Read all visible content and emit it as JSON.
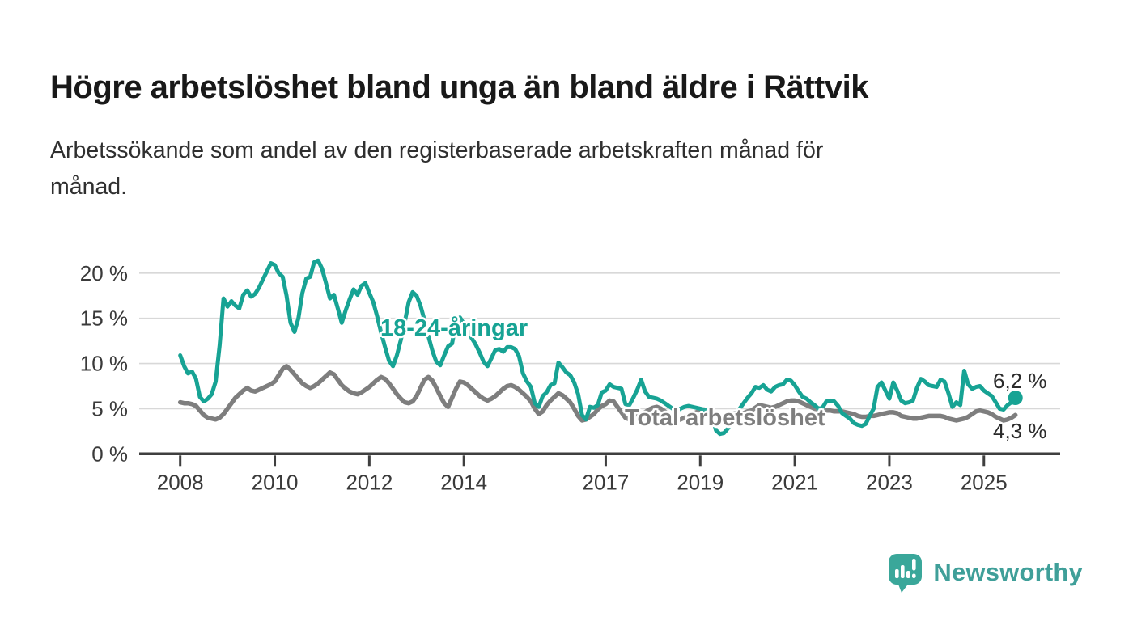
{
  "header": {
    "title": "Högre arbetslöshet bland unga än bland äldre i Rättvik",
    "subtitle_lines": [
      "Arbetssökande som andel av den registerbaserade arbetskraften månad för",
      "månad."
    ]
  },
  "footer": {
    "brand": "Newsworthy"
  },
  "colors": {
    "youth": "#17a394",
    "total": "#7e7e7e",
    "grid": "#d8d8d8",
    "axis": "#3f3f3f",
    "tick_text": "#3a3a3a",
    "title_text": "#191919",
    "logo_bubble": "#3aa79a",
    "logo_text": "#3f9f99",
    "background": "#ffffff"
  },
  "chart_data": {
    "type": "line",
    "frequency": "monthly",
    "start_month": "2008-01",
    "end_month": "2025-09",
    "unit": "%",
    "grid": "horizontal",
    "legend_position": "inline-annotations",
    "ylim": [
      0,
      22
    ],
    "y_ticks": [
      0,
      5,
      10,
      15,
      20
    ],
    "y_tick_labels": [
      "0 %",
      "5 %",
      "10 %",
      "15 %",
      "20 %"
    ],
    "x_tick_years": [
      2008,
      2010,
      2012,
      2014,
      2017,
      2019,
      2021,
      2023,
      2025
    ],
    "series": [
      {
        "name": "18-24-åringar",
        "color": "#17a394",
        "end_label": "6,2 %",
        "end_value": 6.2,
        "values": [
          10.9,
          9.7,
          8.9,
          9.1,
          8.3,
          6.3,
          5.8,
          6.1,
          6.6,
          8.0,
          12.0,
          17.2,
          16.3,
          16.9,
          16.4,
          16.1,
          17.6,
          18.1,
          17.4,
          17.7,
          18.4,
          19.3,
          20.2,
          21.1,
          20.9,
          20.0,
          19.6,
          17.5,
          14.5,
          13.5,
          15.0,
          17.8,
          19.4,
          19.6,
          21.2,
          21.4,
          20.5,
          18.9,
          17.2,
          17.6,
          16.1,
          14.5,
          15.9,
          17.1,
          18.2,
          17.6,
          18.6,
          18.9,
          17.8,
          16.8,
          15.2,
          13.4,
          11.8,
          10.3,
          9.7,
          10.9,
          12.6,
          14.6,
          16.8,
          17.9,
          17.5,
          16.4,
          14.8,
          13.0,
          11.4,
          10.2,
          9.8,
          10.9,
          11.9,
          12.2,
          14.6,
          15.1,
          14.4,
          13.6,
          12.8,
          12.1,
          11.2,
          10.2,
          9.7,
          10.6,
          11.5,
          11.6,
          11.3,
          11.8,
          11.8,
          11.6,
          10.8,
          8.9,
          8.0,
          7.4,
          5.6,
          5.2,
          6.4,
          6.8,
          7.6,
          7.8,
          10.1,
          9.6,
          9.0,
          8.7,
          7.9,
          6.6,
          4.3,
          3.8,
          5.2,
          5.1,
          5.4,
          6.8,
          7.0,
          7.7,
          7.4,
          7.3,
          7.2,
          5.5,
          5.4,
          6.2,
          7.1,
          8.2,
          6.9,
          6.3,
          6.2,
          6.1,
          5.9,
          5.6,
          5.3,
          5.0,
          4.8,
          5.0,
          5.2,
          5.3,
          5.2,
          5.1,
          5.0,
          4.9,
          4.7,
          4.2,
          2.6,
          2.2,
          2.3,
          2.8,
          3.6,
          4.4,
          5.0,
          5.6,
          6.2,
          6.7,
          7.4,
          7.3,
          7.6,
          7.1,
          6.9,
          7.4,
          7.6,
          7.7,
          8.2,
          8.1,
          7.6,
          6.9,
          6.3,
          6.1,
          5.7,
          5.4,
          5.0,
          5.1,
          5.8,
          5.9,
          5.8,
          5.3,
          4.5,
          4.2,
          3.9,
          3.4,
          3.2,
          3.1,
          3.3,
          4.2,
          5.0,
          7.4,
          7.9,
          7.0,
          6.1,
          7.9,
          7.0,
          5.9,
          5.6,
          5.7,
          5.9,
          7.3,
          8.3,
          8.0,
          7.6,
          7.5,
          7.4,
          8.2,
          8.0,
          6.7,
          5.2,
          5.7,
          5.4,
          9.2,
          7.7,
          7.2,
          7.4,
          7.5,
          7.0,
          6.7,
          6.4,
          5.7,
          5.0,
          4.9,
          5.4,
          5.7,
          6.2
        ]
      },
      {
        "name": "Total arbetslöshet",
        "color": "#7e7e7e",
        "end_label": "4,3 %",
        "end_value": 4.3,
        "values": [
          5.7,
          5.6,
          5.6,
          5.5,
          5.3,
          4.8,
          4.3,
          4.0,
          3.9,
          3.8,
          4.0,
          4.4,
          5.0,
          5.6,
          6.2,
          6.6,
          7.0,
          7.3,
          7.0,
          6.9,
          7.1,
          7.3,
          7.5,
          7.7,
          8.0,
          8.7,
          9.4,
          9.7,
          9.3,
          8.8,
          8.3,
          7.8,
          7.5,
          7.3,
          7.5,
          7.8,
          8.2,
          8.6,
          9.0,
          8.8,
          8.2,
          7.6,
          7.2,
          6.9,
          6.7,
          6.6,
          6.8,
          7.1,
          7.4,
          7.8,
          8.2,
          8.5,
          8.3,
          7.8,
          7.2,
          6.6,
          6.1,
          5.7,
          5.6,
          5.8,
          6.4,
          7.3,
          8.2,
          8.5,
          8.1,
          7.3,
          6.4,
          5.6,
          5.2,
          6.2,
          7.2,
          8.0,
          7.9,
          7.6,
          7.2,
          6.8,
          6.4,
          6.1,
          5.9,
          6.1,
          6.4,
          6.8,
          7.2,
          7.5,
          7.6,
          7.4,
          7.1,
          6.7,
          6.3,
          5.8,
          5.0,
          4.4,
          4.7,
          5.4,
          5.9,
          6.3,
          6.7,
          6.5,
          6.1,
          5.7,
          5.0,
          4.2,
          3.7,
          3.8,
          4.1,
          4.4,
          4.9,
          5.3,
          5.5,
          5.9,
          5.8,
          5.2,
          4.6,
          4.0,
          3.8,
          4.0,
          4.2,
          4.4,
          4.6,
          4.9,
          5.1,
          5.2,
          5.0,
          4.7,
          4.3,
          3.9,
          3.7,
          3.8,
          4.0,
          4.2,
          4.4,
          4.6,
          4.8,
          4.9,
          4.7,
          4.5,
          4.2,
          4.0,
          4.1,
          4.2,
          4.4,
          4.5,
          4.4,
          4.5,
          4.7,
          4.8,
          5.1,
          5.4,
          5.3,
          5.2,
          5.1,
          5.2,
          5.4,
          5.6,
          5.8,
          5.9,
          5.9,
          5.8,
          5.6,
          5.4,
          5.2,
          5.0,
          4.9,
          4.9,
          4.8,
          4.8,
          4.7,
          4.7,
          4.7,
          4.6,
          4.5,
          4.4,
          4.2,
          4.1,
          4.1,
          4.2,
          4.2,
          4.3,
          4.4,
          4.5,
          4.6,
          4.6,
          4.5,
          4.2,
          4.1,
          4.0,
          3.9,
          3.9,
          4.0,
          4.1,
          4.2,
          4.2,
          4.2,
          4.2,
          4.1,
          3.9,
          3.8,
          3.7,
          3.8,
          3.9,
          4.1,
          4.4,
          4.7,
          4.8,
          4.7,
          4.6,
          4.4,
          4.1,
          3.9,
          3.7,
          3.8,
          4.0,
          4.3
        ]
      }
    ]
  }
}
